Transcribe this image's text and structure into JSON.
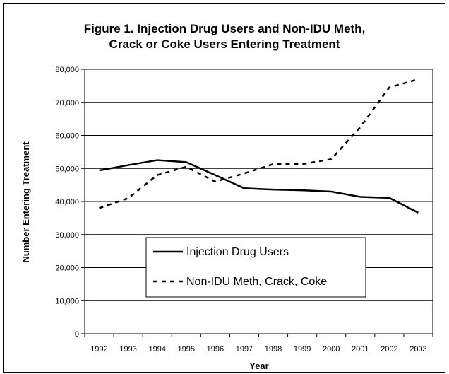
{
  "chart_data": {
    "type": "line",
    "title_line1": "Figure 1. Injection Drug Users and Non-IDU Meth,",
    "title_line2": "Crack or Coke Users Entering Treatment",
    "xlabel": "Year",
    "ylabel": "Number Entering Treatment",
    "ylim": [
      0,
      80000
    ],
    "yticks": [
      "0",
      "10,000",
      "20,000",
      "30,000",
      "40,000",
      "50,000",
      "60,000",
      "70,000",
      "80,000"
    ],
    "categories": [
      "1992",
      "1993",
      "1994",
      "1995",
      "1996",
      "1997",
      "1998",
      "1999",
      "2000",
      "2001",
      "2002",
      "2003"
    ],
    "grid": true,
    "legend_position": "lower-left inside plot",
    "series": [
      {
        "name": "Injection Drug Users",
        "style": "solid",
        "color": "#000000",
        "values": [
          49400,
          51000,
          52500,
          51900,
          48000,
          44000,
          43600,
          43400,
          43000,
          41400,
          41100,
          36600
        ]
      },
      {
        "name": "Non-IDU Meth, Crack, Coke",
        "style": "dashed",
        "color": "#000000",
        "values": [
          38000,
          41000,
          48000,
          50500,
          46000,
          48500,
          51300,
          51300,
          52800,
          62500,
          74500,
          77000
        ]
      }
    ]
  }
}
